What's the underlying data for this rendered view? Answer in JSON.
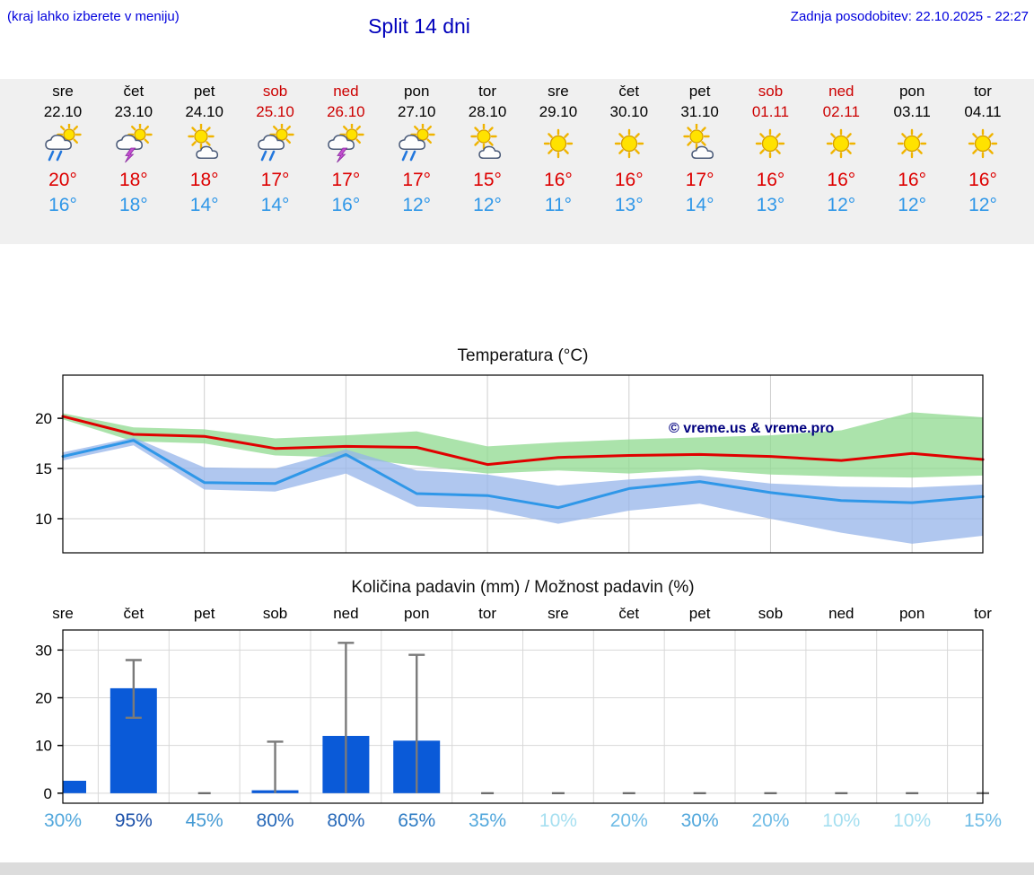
{
  "header": {
    "note": "(kraj lahko izberete v meniju)",
    "title": "Split 14 dni",
    "updated": "Zadnja posodobitev: 22.10.2025 - 22:27"
  },
  "colors": {
    "link_blue": "#0000dd",
    "title_blue": "#0000bb",
    "weekend_red": "#cc0000",
    "temp_max_red": "#e00000",
    "temp_min_blue": "#2f97e8",
    "strip_bg": "#f0f0f0",
    "bar_blue": "#0a5ad8",
    "whisker_gray": "#7a7a7a",
    "band_green": "#8fd98f",
    "band_blue": "#95b4ea",
    "watermark_blue": "#00007f"
  },
  "days": [
    {
      "name": "sre",
      "date": "22.10",
      "weekend": false,
      "icon": "sun-rain",
      "tmax": "20°",
      "tmin": "16°"
    },
    {
      "name": "čet",
      "date": "23.10",
      "weekend": false,
      "icon": "sun-thunder",
      "tmax": "18°",
      "tmin": "18°"
    },
    {
      "name": "pet",
      "date": "24.10",
      "weekend": false,
      "icon": "sun-cloud",
      "tmax": "18°",
      "tmin": "14°"
    },
    {
      "name": "sob",
      "date": "25.10",
      "weekend": true,
      "icon": "sun-rain",
      "tmax": "17°",
      "tmin": "14°"
    },
    {
      "name": "ned",
      "date": "26.10",
      "weekend": true,
      "icon": "sun-thunder",
      "tmax": "17°",
      "tmin": "16°"
    },
    {
      "name": "pon",
      "date": "27.10",
      "weekend": false,
      "icon": "sun-rain",
      "tmax": "17°",
      "tmin": "12°"
    },
    {
      "name": "tor",
      "date": "28.10",
      "weekend": false,
      "icon": "sun-cloud",
      "tmax": "15°",
      "tmin": "12°"
    },
    {
      "name": "sre",
      "date": "29.10",
      "weekend": false,
      "icon": "sun",
      "tmax": "16°",
      "tmin": "11°"
    },
    {
      "name": "čet",
      "date": "30.10",
      "weekend": false,
      "icon": "sun",
      "tmax": "16°",
      "tmin": "13°"
    },
    {
      "name": "pet",
      "date": "31.10",
      "weekend": false,
      "icon": "sun-cloud",
      "tmax": "17°",
      "tmin": "14°"
    },
    {
      "name": "sob",
      "date": "01.11",
      "weekend": true,
      "icon": "sun",
      "tmax": "16°",
      "tmin": "13°"
    },
    {
      "name": "ned",
      "date": "02.11",
      "weekend": true,
      "icon": "sun",
      "tmax": "16°",
      "tmin": "12°"
    },
    {
      "name": "pon",
      "date": "03.11",
      "weekend": false,
      "icon": "sun",
      "tmax": "16°",
      "tmin": "12°"
    },
    {
      "name": "tor",
      "date": "04.11",
      "weekend": false,
      "icon": "sun",
      "tmax": "16°",
      "tmin": "12°"
    }
  ],
  "chart_data": [
    {
      "type": "line",
      "title": "Temperatura (°C)",
      "watermark": "© vreme.us & vreme.pro",
      "x": [
        "22.10",
        "23.10",
        "24.10",
        "25.10",
        "26.10",
        "27.10",
        "28.10",
        "29.10",
        "30.10",
        "31.10",
        "01.11",
        "02.11",
        "03.11",
        "04.11"
      ],
      "ylim": [
        6.6,
        24.3
      ],
      "yticks": [
        10,
        15,
        20
      ],
      "grid": true,
      "series": [
        {
          "name": "max-temp",
          "color": "#e00000",
          "values": [
            20.2,
            18.4,
            18.2,
            17.0,
            17.2,
            17.1,
            15.4,
            16.1,
            16.3,
            16.4,
            16.2,
            15.8,
            16.5,
            15.9
          ]
        },
        {
          "name": "min-temp",
          "color": "#2f97e8",
          "values": [
            16.2,
            17.8,
            13.6,
            13.5,
            16.4,
            12.5,
            12.3,
            11.1,
            13.0,
            13.7,
            12.6,
            11.8,
            11.6,
            12.2
          ]
        }
      ],
      "bands": [
        {
          "name": "max-range",
          "color": "#8fd98f",
          "upper": [
            20.5,
            19.1,
            18.9,
            18.0,
            18.3,
            18.7,
            17.2,
            17.6,
            17.9,
            18.1,
            18.3,
            18.8,
            20.6,
            20.1
          ],
          "lower": [
            19.9,
            17.7,
            17.5,
            16.3,
            16.1,
            15.3,
            14.5,
            14.8,
            14.5,
            14.9,
            14.4,
            14.2,
            14.1,
            14.3
          ]
        },
        {
          "name": "min-range",
          "color": "#95b4ea",
          "upper": [
            16.6,
            18.1,
            15.1,
            15.0,
            16.9,
            14.8,
            14.4,
            13.3,
            13.9,
            14.3,
            13.5,
            13.2,
            13.1,
            13.4
          ],
          "lower": [
            15.8,
            17.3,
            12.9,
            12.7,
            14.5,
            11.2,
            10.9,
            9.5,
            10.8,
            11.5,
            10.0,
            8.6,
            7.5,
            8.3
          ]
        }
      ]
    },
    {
      "type": "bar",
      "title": "Količina padavin (mm) / Možnost padavin (%)",
      "categories": [
        "sre",
        "čet",
        "pet",
        "sob",
        "ned",
        "pon",
        "tor",
        "sre",
        "čet",
        "pet",
        "sob",
        "ned",
        "pon",
        "tor"
      ],
      "values": [
        2.6,
        22,
        0,
        0.6,
        12,
        11,
        0,
        0,
        0,
        0,
        0,
        0,
        0,
        0
      ],
      "whiskers": [
        null,
        [
          15.8,
          27.9
        ],
        [
          0,
          0
        ],
        [
          0,
          10.8
        ],
        [
          0,
          31.5
        ],
        [
          0,
          29
        ],
        [
          0,
          0
        ],
        [
          0,
          0
        ],
        [
          0,
          0
        ],
        [
          0,
          0
        ],
        [
          0,
          0
        ],
        [
          0,
          0
        ],
        [
          0,
          0
        ],
        [
          0,
          0
        ]
      ],
      "ylim": [
        -2.1,
        34.2
      ],
      "yticks": [
        0,
        10,
        20,
        30
      ],
      "grid": true,
      "probabilities": [
        {
          "label": "30%",
          "color": "#51a7dc"
        },
        {
          "label": "95%",
          "color": "#1a4fa8"
        },
        {
          "label": "45%",
          "color": "#459ad4"
        },
        {
          "label": "80%",
          "color": "#2668b8"
        },
        {
          "label": "80%",
          "color": "#2668b8"
        },
        {
          "label": "65%",
          "color": "#2e7cc4"
        },
        {
          "label": "35%",
          "color": "#51a7dc"
        },
        {
          "label": "10%",
          "color": "#a5dff0"
        },
        {
          "label": "20%",
          "color": "#6fbce6"
        },
        {
          "label": "30%",
          "color": "#51a7dc"
        },
        {
          "label": "20%",
          "color": "#6fbce6"
        },
        {
          "label": "10%",
          "color": "#a5dff0"
        },
        {
          "label": "10%",
          "color": "#a5dff0"
        },
        {
          "label": "15%",
          "color": "#6fbce6"
        }
      ]
    }
  ]
}
